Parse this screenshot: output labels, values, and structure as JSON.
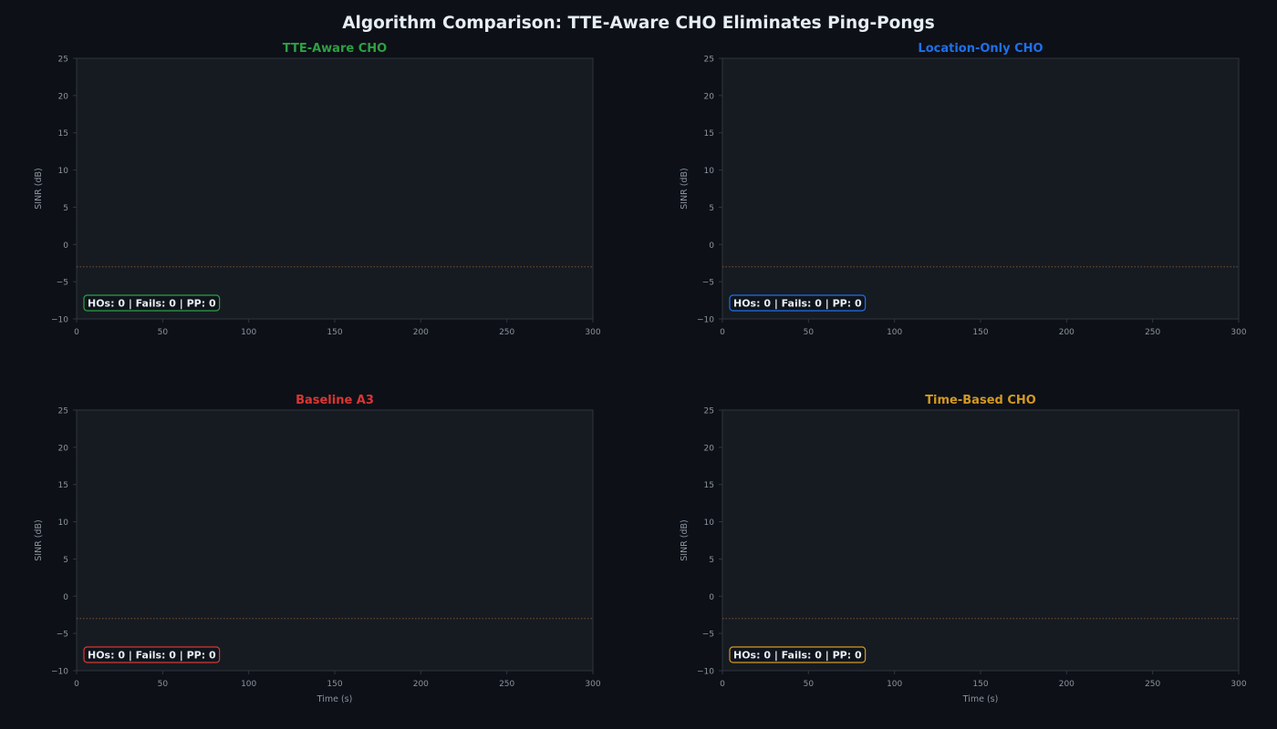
{
  "suptitle": "Algorithm Comparison: TTE-Aware CHO Eliminates Ping-Pongs",
  "colors": {
    "figure_bg": "#0d1017",
    "axes_bg": "#161b22",
    "spine": "#30363d",
    "tick_text": "#8b949e",
    "title_text": "#e6edf3",
    "threshold_line": "#8a5a2b"
  },
  "chart_data": [
    {
      "type": "line",
      "title": "TTE-Aware CHO",
      "color": "#2ea043",
      "xlabel": "",
      "ylabel": "SINR (dB)",
      "xlim": [
        0,
        300
      ],
      "ylim": [
        -10,
        25
      ],
      "xticks": [
        0,
        50,
        100,
        150,
        200,
        250,
        300
      ],
      "yticks": [
        -10,
        -5,
        0,
        5,
        10,
        15,
        20,
        25
      ],
      "grid": false,
      "series": [],
      "threshold": -3,
      "annotation": "HOs: 0 | Fails: 0 | PP: 0"
    },
    {
      "type": "line",
      "title": "Location-Only CHO",
      "color": "#1f6feb",
      "xlabel": "",
      "ylabel": "SINR (dB)",
      "xlim": [
        0,
        300
      ],
      "ylim": [
        -10,
        25
      ],
      "xticks": [
        0,
        50,
        100,
        150,
        200,
        250,
        300
      ],
      "yticks": [
        -10,
        -5,
        0,
        5,
        10,
        15,
        20,
        25
      ],
      "grid": false,
      "series": [],
      "threshold": -3,
      "annotation": "HOs: 0 | Fails: 0 | PP: 0"
    },
    {
      "type": "line",
      "title": "Baseline A3",
      "color": "#da3633",
      "xlabel": "Time (s)",
      "ylabel": "SINR (dB)",
      "xlim": [
        0,
        300
      ],
      "ylim": [
        -10,
        25
      ],
      "xticks": [
        0,
        50,
        100,
        150,
        200,
        250,
        300
      ],
      "yticks": [
        -10,
        -5,
        0,
        5,
        10,
        15,
        20,
        25
      ],
      "grid": false,
      "series": [],
      "threshold": -3,
      "annotation": "HOs: 0 | Fails: 0 | PP: 0"
    },
    {
      "type": "line",
      "title": "Time-Based CHO",
      "color": "#d29922",
      "xlabel": "Time (s)",
      "ylabel": "SINR (dB)",
      "xlim": [
        0,
        300
      ],
      "ylim": [
        -10,
        25
      ],
      "xticks": [
        0,
        50,
        100,
        150,
        200,
        250,
        300
      ],
      "yticks": [
        -10,
        -5,
        0,
        5,
        10,
        15,
        20,
        25
      ],
      "grid": false,
      "series": [],
      "threshold": -3,
      "annotation": "HOs: 0 | Fails: 0 | PP: 0"
    }
  ]
}
